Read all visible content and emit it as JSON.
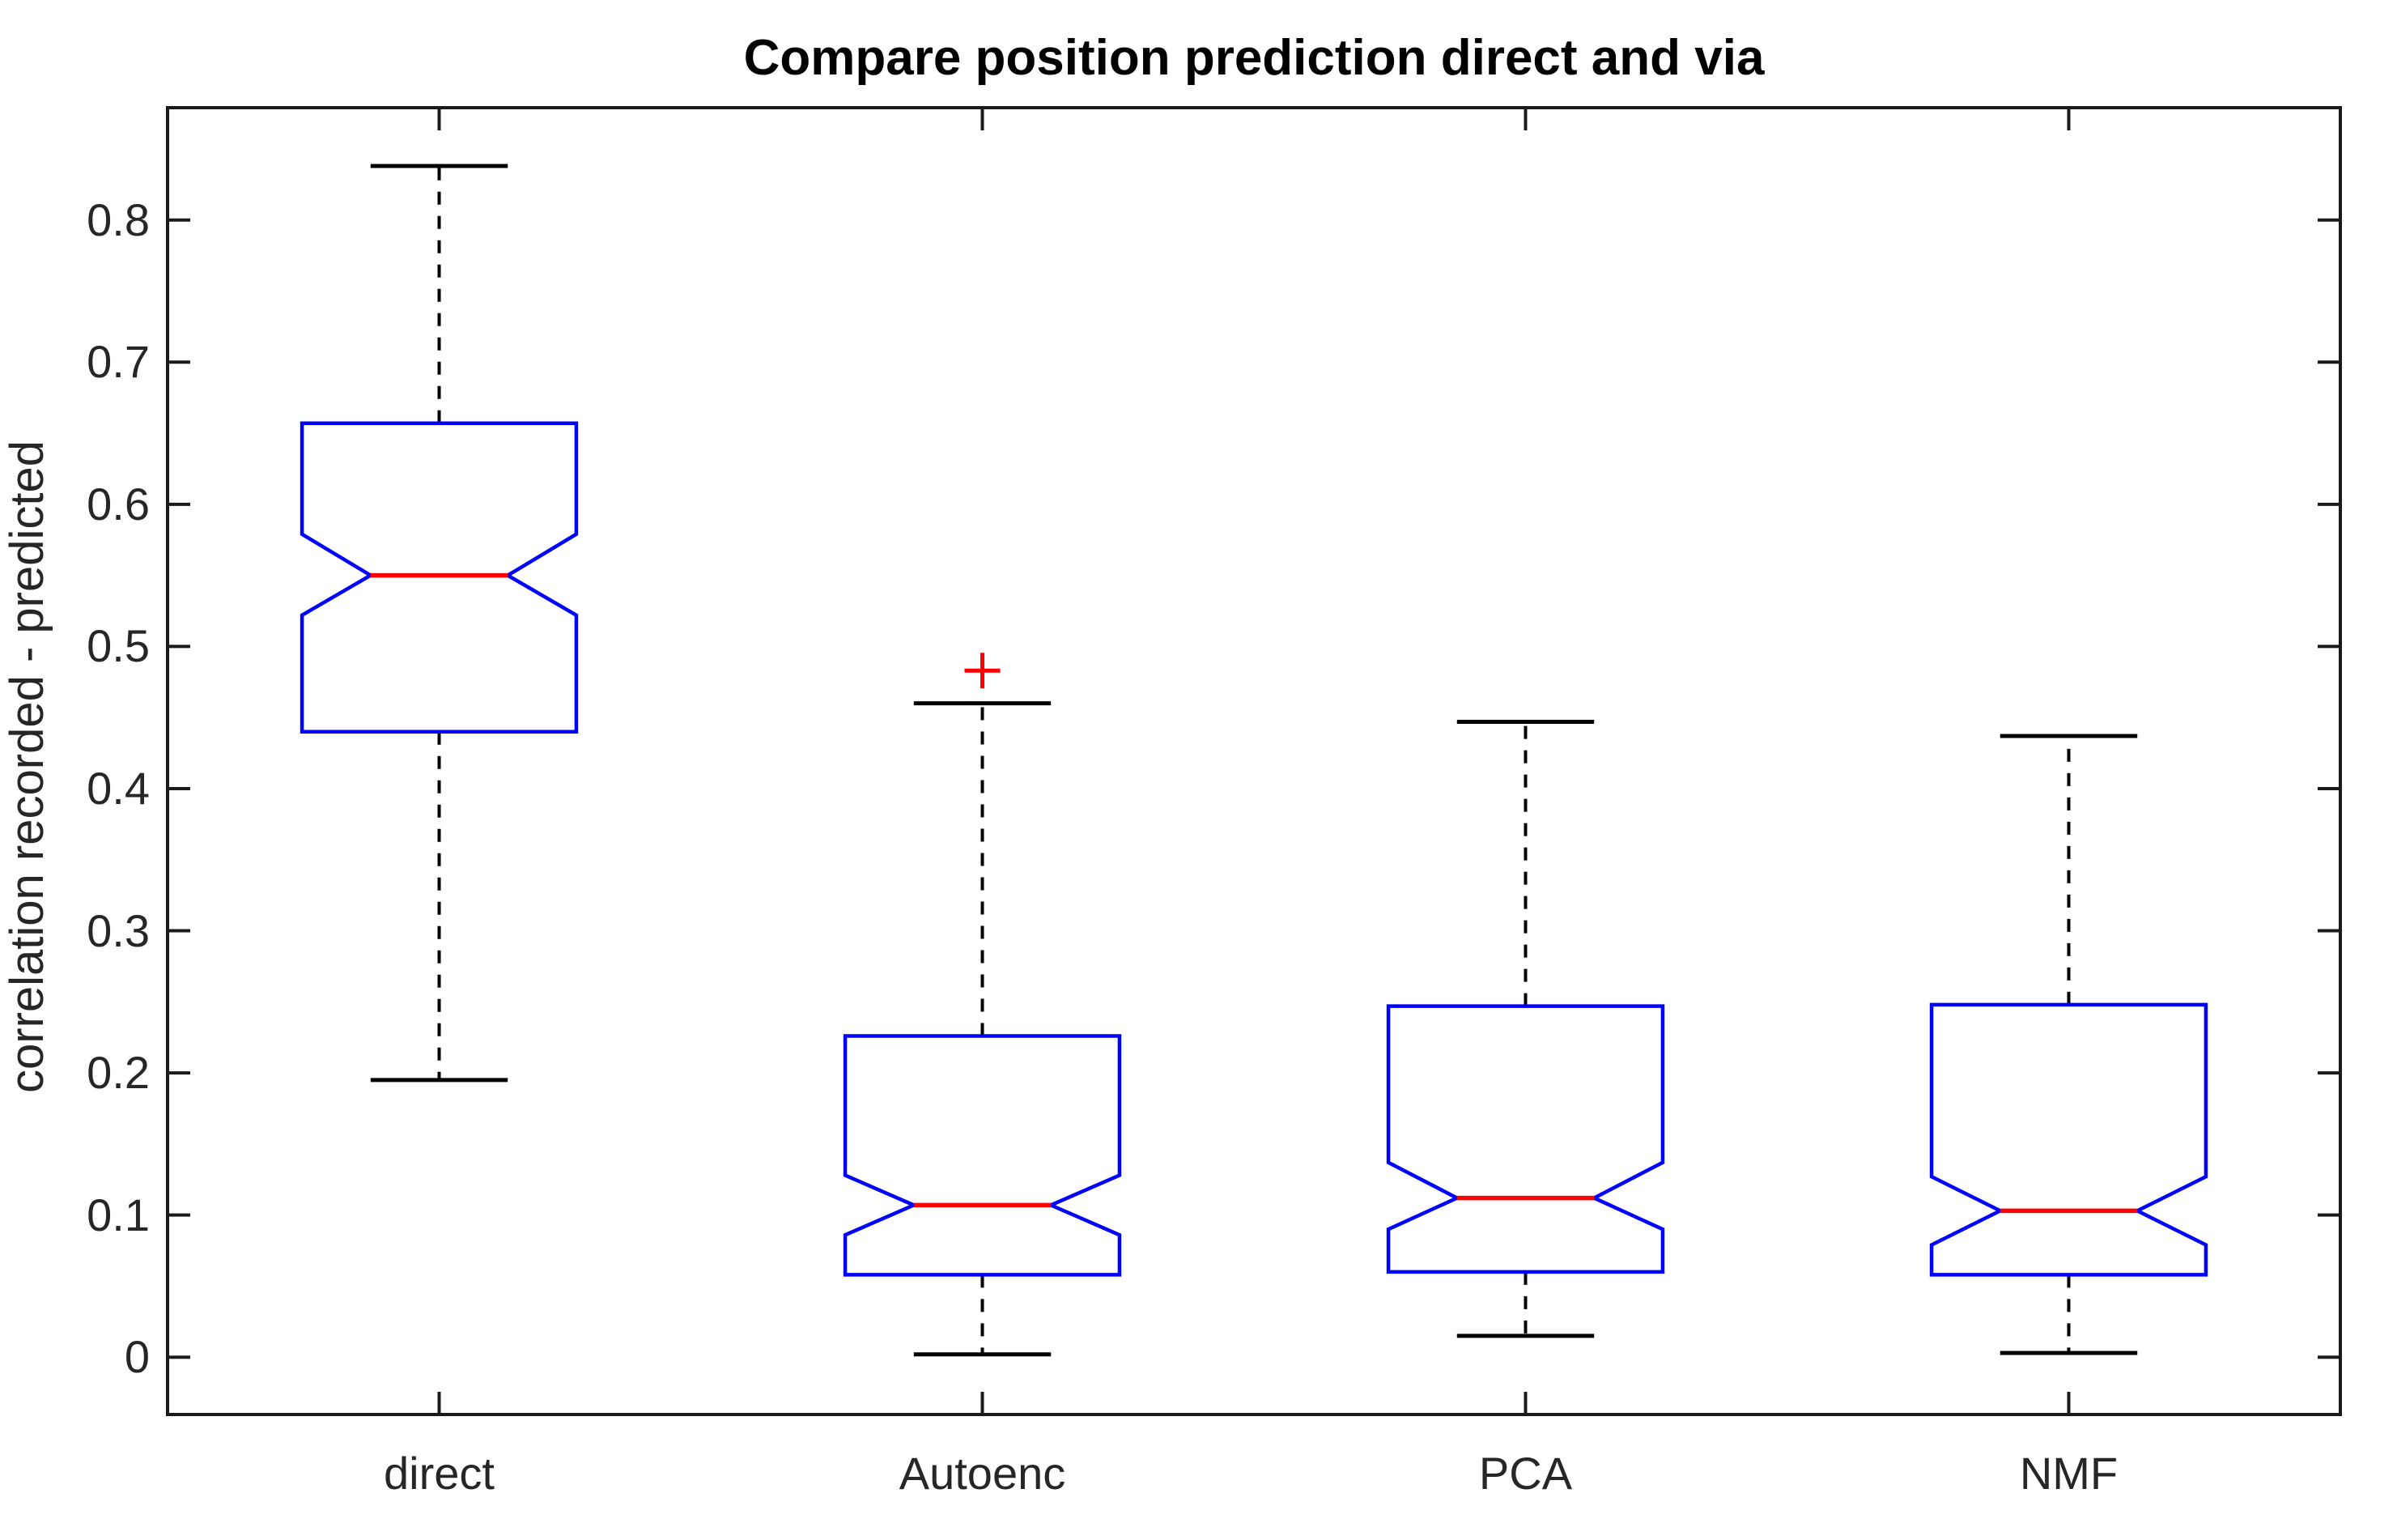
{
  "chart_data": {
    "type": "box",
    "title": "Compare position prediction direct and via",
    "ylabel": "correlation recorded - predicted",
    "xlabel": "",
    "categories": [
      "direct",
      "Autoenc",
      "PCA",
      "NMF"
    ],
    "notched": true,
    "grid": false,
    "ylim": [
      -0.0403,
      0.879
    ],
    "yticks": [
      0,
      0.1,
      0.2,
      0.3,
      0.4,
      0.5,
      0.6,
      0.7,
      0.8
    ],
    "ytick_labels": [
      "0",
      "0.1",
      "0.2",
      "0.3",
      "0.4",
      "0.5",
      "0.6",
      "0.7",
      "0.8"
    ],
    "series": [
      {
        "name": "direct",
        "whisker_low": 0.195,
        "q1": 0.44,
        "notch_low": 0.522,
        "median": 0.55,
        "notch_high": 0.579,
        "q3": 0.657,
        "whisker_high": 0.838,
        "outliers": []
      },
      {
        "name": "Autoenc",
        "whisker_low": 0.002,
        "q1": 0.058,
        "notch_low": 0.086,
        "median": 0.107,
        "notch_high": 0.128,
        "q3": 0.226,
        "whisker_high": 0.46,
        "outliers": [
          0.483
        ]
      },
      {
        "name": "PCA",
        "whisker_low": 0.015,
        "q1": 0.06,
        "notch_low": 0.09,
        "median": 0.112,
        "notch_high": 0.137,
        "q3": 0.247,
        "whisker_high": 0.447,
        "outliers": []
      },
      {
        "name": "NMF",
        "whisker_low": 0.003,
        "q1": 0.058,
        "notch_low": 0.079,
        "median": 0.103,
        "notch_high": 0.127,
        "q3": 0.248,
        "whisker_high": 0.437,
        "outliers": []
      }
    ],
    "colors": {
      "box": "#0000ff",
      "median": "#ff0000",
      "whisker": "#000000",
      "cap": "#000000",
      "outlier": "#ff0000",
      "axis": "#1a1a1a",
      "text": "#262626",
      "background": "#ffffff"
    }
  }
}
